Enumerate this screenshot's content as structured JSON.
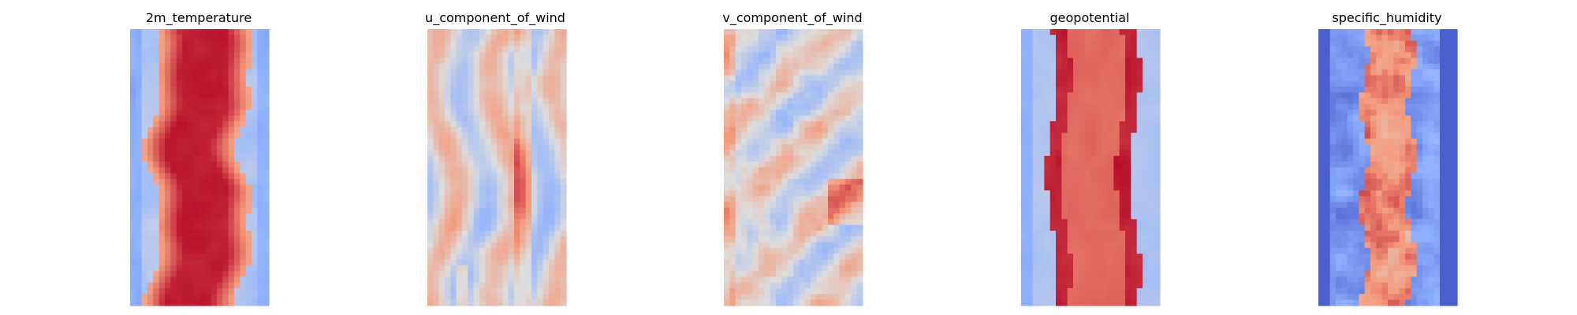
{
  "chart_data": [
    {
      "type": "heatmap",
      "title": "2m_temperature",
      "colormap": "coolwarm",
      "grid": false,
      "axes": "off",
      "pattern": "warm central band (dark red core with dark spots), light-red edges, blue margins with mottled light blue at left and right"
    },
    {
      "type": "heatmap",
      "title": "u_component_of_wind",
      "colormap": "coolwarm",
      "grid": false,
      "axes": "off",
      "pattern": "wavy vertical streaks alternating light red and light blue, a darker red stripe right of center, dark red spots near bottom"
    },
    {
      "type": "heatmap",
      "title": "v_component_of_wind",
      "colormap": "coolwarm",
      "grid": false,
      "axes": "off",
      "pattern": "near-neutral grey field with scattered red and blue blobs, reddish left edge, darker red patch lower right"
    },
    {
      "type": "heatmap",
      "title": "geopotential",
      "colormap": "coolwarm",
      "grid": false,
      "axes": "off",
      "pattern": "smooth red central band with darker red blobs along the edges, blue margins, light blue left edge"
    },
    {
      "type": "heatmap",
      "title": "specific_humidity",
      "colormap": "coolwarm",
      "grid": false,
      "axes": "off",
      "pattern": "deep blue background with a narrow turbulent red core down the middle and swirling light blue eddies"
    }
  ]
}
